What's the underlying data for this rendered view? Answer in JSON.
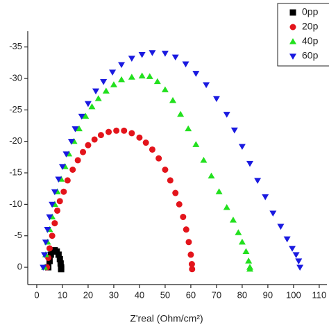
{
  "chart_data": {
    "type": "scatter",
    "x_label": "Z'real (Ohm/cm²)",
    "xlim": [
      -3.5,
      113
    ],
    "xticks": [
      0,
      10,
      20,
      30,
      40,
      50,
      60,
      70,
      80,
      90,
      100,
      110
    ],
    "ylim": [
      2.75,
      -37.5
    ],
    "yticks": [
      0,
      -5,
      -10,
      -15,
      -20,
      -25,
      -30,
      -35
    ],
    "legend": "top-right",
    "series": [
      {
        "name": "0pp",
        "color": "#000000",
        "marker": "square",
        "x": [
          4.5,
          5,
          5.5,
          6.2,
          7,
          7.8,
          8.5,
          9,
          9.3,
          9.5,
          9.5
        ],
        "values": [
          0,
          -1,
          -2,
          -2.6,
          -2.7,
          -2.5,
          -2,
          -1.3,
          -0.6,
          0,
          0.3
        ]
      },
      {
        "name": "20p",
        "color": "#e3141b",
        "marker": "circle",
        "x": [
          4,
          4.5,
          5,
          6,
          7,
          8,
          9,
          10.5,
          12,
          14,
          16,
          18,
          20,
          22.5,
          25,
          28,
          31,
          34,
          37,
          40,
          42.5,
          45,
          47.5,
          50,
          52,
          54,
          55.5,
          57,
          58.2,
          59.2,
          60,
          60.4,
          60.5
        ],
        "values": [
          0,
          -1.5,
          -3,
          -5,
          -7,
          -9,
          -10.5,
          -12,
          -13.8,
          -15.5,
          -17,
          -18.3,
          -19.4,
          -20.3,
          -21,
          -21.5,
          -21.7,
          -21.7,
          -21.3,
          -20.6,
          -19.8,
          -18.7,
          -17.3,
          -15.5,
          -13.8,
          -11.8,
          -10,
          -8,
          -6,
          -4,
          -2,
          -0.5,
          0.3
        ]
      },
      {
        "name": "40p",
        "color": "#22e01e",
        "marker": "triangle-up",
        "x": [
          3,
          3.5,
          4.2,
          5,
          6,
          7,
          8,
          9.5,
          11,
          12.5,
          14.5,
          16.5,
          19,
          21.5,
          24,
          27,
          30,
          33,
          37,
          41,
          44,
          47,
          50,
          53,
          56,
          59,
          62,
          65,
          68,
          71,
          74,
          76.5,
          78.5,
          80,
          81.5,
          82.5,
          83,
          83
        ],
        "values": [
          0,
          -2,
          -4,
          -6,
          -8,
          -10,
          -12,
          -14,
          -16,
          -18,
          -20,
          -22,
          -24,
          -25.5,
          -26.8,
          -28,
          -29,
          -29.8,
          -30.2,
          -30.4,
          -30.3,
          -29.5,
          -28.2,
          -26.5,
          -24.3,
          -22,
          -19.5,
          -17,
          -14.5,
          -12,
          -9.5,
          -7.5,
          -5.5,
          -4,
          -2.5,
          -1,
          0,
          0.3
        ]
      },
      {
        "name": "60p",
        "color": "#1a1ae0",
        "marker": "triangle-down",
        "x": [
          2.5,
          3,
          3.5,
          4.2,
          5,
          6,
          7,
          8.5,
          10,
          11.5,
          13.5,
          15,
          17.5,
          20,
          23,
          26,
          29.5,
          33,
          37,
          41,
          45,
          50,
          54,
          58,
          62,
          66,
          70,
          74,
          77,
          80,
          83,
          86,
          89,
          92,
          95,
          97.5,
          99.5,
          101,
          102,
          102.5
        ],
        "values": [
          0,
          -2,
          -4,
          -6,
          -8,
          -10,
          -12,
          -14,
          -16,
          -18,
          -20,
          -22,
          -24,
          -26,
          -28,
          -29.5,
          -31,
          -32.2,
          -33.2,
          -33.8,
          -34.1,
          -34,
          -33.4,
          -32.3,
          -30.8,
          -29,
          -26.8,
          -24.3,
          -21.8,
          -19.2,
          -16.5,
          -13.8,
          -11.2,
          -8.6,
          -6.5,
          -4.5,
          -3,
          -2,
          -1,
          0
        ]
      }
    ]
  }
}
